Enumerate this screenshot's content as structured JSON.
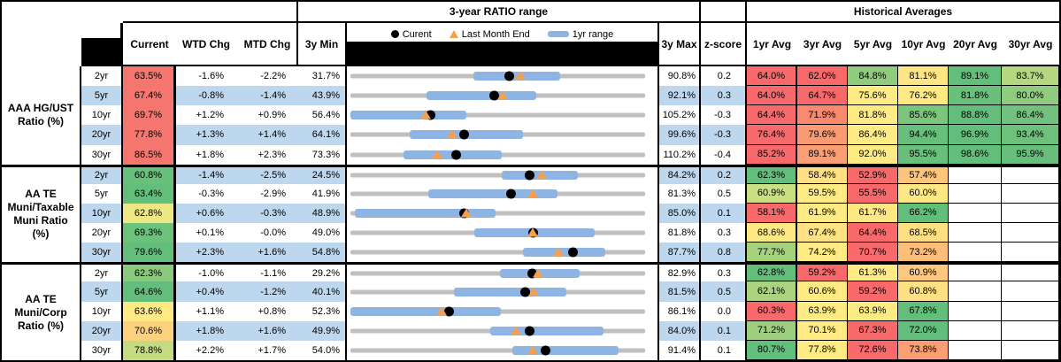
{
  "header": {
    "range_title": "3-year RATIO range",
    "hist_title": "Historical Averages",
    "legend": {
      "current": "Curent",
      "last_month_end": "Last Month End",
      "range": "1yr range"
    },
    "columns": {
      "current": "Current",
      "wtd": "WTD Chg",
      "mtd": "MTD Chg",
      "min": "3y Min",
      "max": "3y Max",
      "z": "z-score"
    },
    "avg_columns": [
      "1yr Avg",
      "3yr Avg",
      "5yr Avg",
      "10yr Avg",
      "20yr Avg",
      "30yr Avg"
    ]
  },
  "palette": {
    "band_blue": "#BDD7EE",
    "bar_blue": "#8DB4E2",
    "track_gray": "#BFBFBF",
    "triangle_orange": "#F6A04E",
    "dot_black": "#000000",
    "heat_red": "#F8696B",
    "heat_yellow": "#FFEB84",
    "heat_green": "#63BE7B"
  },
  "groups": [
    {
      "label_lines": [
        "AAA HG/UST",
        "Ratio (%)"
      ],
      "rows": [
        {
          "tenor": "2yr",
          "current": "63.5%",
          "cur_bg": "#F4766E",
          "wtd": "-1.6%",
          "mtd": "-2.2%",
          "min": "31.7%",
          "max": "90.8%",
          "z": "0.2",
          "avgs": [
            {
              "v": "64.0%",
              "bg": "#F8696B"
            },
            {
              "v": "62.0%",
              "bg": "#F8696B"
            },
            {
              "v": "84.8%",
              "bg": "#90CC7E"
            },
            {
              "v": "81.1%",
              "bg": "#FFE583"
            },
            {
              "v": "89.1%",
              "bg": "#63BE7B"
            },
            {
              "v": "83.7%",
              "bg": "#B5D77F"
            }
          ]
        },
        {
          "tenor": "5yr",
          "current": "67.4%",
          "cur_bg": "#F4766E",
          "wtd": "-0.8%",
          "mtd": "-1.4%",
          "min": "43.9%",
          "max": "92.1%",
          "z": "0.3",
          "avgs": [
            {
              "v": "64.0%",
              "bg": "#F8696B"
            },
            {
              "v": "64.7%",
              "bg": "#F8696B"
            },
            {
              "v": "75.6%",
              "bg": "#FFEB84"
            },
            {
              "v": "76.2%",
              "bg": "#FFE983"
            },
            {
              "v": "81.8%",
              "bg": "#68C07B"
            },
            {
              "v": "80.0%",
              "bg": "#90CC7E"
            }
          ]
        },
        {
          "tenor": "10yr",
          "current": "69.7%",
          "cur_bg": "#F4766E",
          "wtd": "+1.2%",
          "mtd": "+0.9%",
          "min": "56.4%",
          "max": "105.2%",
          "z": "-0.3",
          "avgs": [
            {
              "v": "64.4%",
              "bg": "#F8696B"
            },
            {
              "v": "71.9%",
              "bg": "#F98A70"
            },
            {
              "v": "81.8%",
              "bg": "#FFEB84"
            },
            {
              "v": "85.6%",
              "bg": "#7CC67C"
            },
            {
              "v": "88.8%",
              "bg": "#63BE7B"
            },
            {
              "v": "86.4%",
              "bg": "#70C27C"
            }
          ]
        },
        {
          "tenor": "20yr",
          "current": "77.8%",
          "cur_bg": "#F4766E",
          "wtd": "+1.3%",
          "mtd": "+1.4%",
          "min": "64.1%",
          "max": "99.6%",
          "z": "-0.3",
          "avgs": [
            {
              "v": "76.4%",
              "bg": "#F8696B"
            },
            {
              "v": "79.6%",
              "bg": "#FA9B73"
            },
            {
              "v": "86.4%",
              "bg": "#FFEB84"
            },
            {
              "v": "94.4%",
              "bg": "#66BF7B"
            },
            {
              "v": "96.9%",
              "bg": "#63BE7B"
            },
            {
              "v": "93.4%",
              "bg": "#6DC17B"
            }
          ]
        },
        {
          "tenor": "30yr",
          "current": "86.5%",
          "cur_bg": "#F4766E",
          "wtd": "+1.8%",
          "mtd": "+2.3%",
          "min": "73.3%",
          "max": "110.2%",
          "z": "-0.4",
          "avgs": [
            {
              "v": "85.2%",
              "bg": "#F8696B"
            },
            {
              "v": "89.1%",
              "bg": "#FA9E74"
            },
            {
              "v": "92.0%",
              "bg": "#FFEB84"
            },
            {
              "v": "95.5%",
              "bg": "#68C07B"
            },
            {
              "v": "98.6%",
              "bg": "#63BE7B"
            },
            {
              "v": "95.9%",
              "bg": "#66BF7B"
            }
          ]
        }
      ]
    },
    {
      "label_lines": [
        "AA TE",
        "Muni/Taxable",
        "Muni Ratio",
        "(%)"
      ],
      "rows": [
        {
          "tenor": "2yr",
          "current": "60.8%",
          "cur_bg": "#68C07B",
          "wtd": "-1.4%",
          "mtd": "-2.5%",
          "min": "24.5%",
          "max": "84.2%",
          "z": "0.2",
          "avgs": [
            {
              "v": "62.3%",
              "bg": "#63BE7B"
            },
            {
              "v": "58.4%",
              "bg": "#FFE183"
            },
            {
              "v": "52.9%",
              "bg": "#F8696B"
            },
            {
              "v": "57.4%",
              "bg": "#FDC57C"
            }
          ]
        },
        {
          "tenor": "5yr",
          "current": "63.4%",
          "cur_bg": "#63BE7B",
          "wtd": "-0.3%",
          "mtd": "-2.9%",
          "min": "41.9%",
          "max": "81.3%",
          "z": "0.5",
          "avgs": [
            {
              "v": "60.9%",
              "bg": "#C9DF81"
            },
            {
              "v": "59.5%",
              "bg": "#FFEB84"
            },
            {
              "v": "55.5%",
              "bg": "#F8696B"
            },
            {
              "v": "60.0%",
              "bg": "#FFE884"
            }
          ]
        },
        {
          "tenor": "10yr",
          "current": "62.8%",
          "cur_bg": "#EDE884",
          "wtd": "+0.6%",
          "mtd": "-0.3%",
          "min": "48.9%",
          "max": "85.0%",
          "z": "0.1",
          "avgs": [
            {
              "v": "58.1%",
              "bg": "#F8696B"
            },
            {
              "v": "61.9%",
              "bg": "#FFEB84"
            },
            {
              "v": "61.7%",
              "bg": "#FFE783"
            },
            {
              "v": "66.2%",
              "bg": "#63BE7B"
            }
          ]
        },
        {
          "tenor": "20yr",
          "current": "69.3%",
          "cur_bg": "#6CC17B",
          "wtd": "+0.1%",
          "mtd": "-0.0%",
          "min": "49.0%",
          "max": "81.8%",
          "z": "0.3",
          "avgs": [
            {
              "v": "68.6%",
              "bg": "#FEE883"
            },
            {
              "v": "67.4%",
              "bg": "#FFE283"
            },
            {
              "v": "64.4%",
              "bg": "#F8696B"
            },
            {
              "v": "68.5%",
              "bg": "#FEE083"
            }
          ]
        },
        {
          "tenor": "30yr",
          "current": "79.6%",
          "cur_bg": "#63BE7B",
          "wtd": "+2.3%",
          "mtd": "+1.6%",
          "min": "54.8%",
          "max": "87.7%",
          "z": "0.8",
          "avgs": [
            {
              "v": "77.7%",
              "bg": "#A6D27E"
            },
            {
              "v": "74.2%",
              "bg": "#FFEB84"
            },
            {
              "v": "70.7%",
              "bg": "#F8696B"
            },
            {
              "v": "73.2%",
              "bg": "#FDBE7B"
            }
          ]
        }
      ]
    },
    {
      "label_lines": [
        "AA TE",
        "Muni/Corp",
        "Ratio (%)"
      ],
      "rows": [
        {
          "tenor": "2yr",
          "current": "62.3%",
          "cur_bg": "#8BCA7D",
          "wtd": "-1.0%",
          "mtd": "-1.1%",
          "min": "29.2%",
          "max": "82.9%",
          "z": "0.3",
          "avgs": [
            {
              "v": "62.8%",
              "bg": "#63BE7B"
            },
            {
              "v": "59.2%",
              "bg": "#F8696B"
            },
            {
              "v": "61.3%",
              "bg": "#FFEB84"
            },
            {
              "v": "60.9%",
              "bg": "#FDC87D"
            }
          ]
        },
        {
          "tenor": "5yr",
          "current": "64.6%",
          "cur_bg": "#63BE7B",
          "wtd": "+0.4%",
          "mtd": "-1.2%",
          "min": "40.1%",
          "max": "81.5%",
          "z": "0.5",
          "avgs": [
            {
              "v": "62.1%",
              "bg": "#ABD37F"
            },
            {
              "v": "60.6%",
              "bg": "#FFEB84"
            },
            {
              "v": "59.2%",
              "bg": "#F8696B"
            },
            {
              "v": "60.8%",
              "bg": "#FFE083"
            }
          ]
        },
        {
          "tenor": "10yr",
          "current": "63.6%",
          "cur_bg": "#FFE983",
          "wtd": "+1.1%",
          "mtd": "+0.8%",
          "min": "52.3%",
          "max": "86.1%",
          "z": "0.0",
          "avgs": [
            {
              "v": "60.3%",
              "bg": "#F8696B"
            },
            {
              "v": "63.9%",
              "bg": "#FFEB84"
            },
            {
              "v": "63.9%",
              "bg": "#FFEB84"
            },
            {
              "v": "67.8%",
              "bg": "#63BE7B"
            }
          ]
        },
        {
          "tenor": "20yr",
          "current": "70.6%",
          "cur_bg": "#FBD17E",
          "wtd": "+1.8%",
          "mtd": "+1.6%",
          "min": "49.9%",
          "max": "84.0%",
          "z": "0.1",
          "avgs": [
            {
              "v": "71.2%",
              "bg": "#9DCF7E"
            },
            {
              "v": "70.1%",
              "bg": "#FFEB84"
            },
            {
              "v": "67.3%",
              "bg": "#F8696B"
            },
            {
              "v": "72.0%",
              "bg": "#63BE7B"
            }
          ]
        },
        {
          "tenor": "30yr",
          "current": "78.8%",
          "cur_bg": "#C4DC80",
          "wtd": "+2.2%",
          "mtd": "+1.7%",
          "min": "54.0%",
          "max": "91.4%",
          "z": "0.1",
          "avgs": [
            {
              "v": "80.7%",
              "bg": "#63BE7B"
            },
            {
              "v": "77.8%",
              "bg": "#FFEB84"
            },
            {
              "v": "72.6%",
              "bg": "#F8696B"
            },
            {
              "v": "73.8%",
              "bg": "#FB9E73"
            }
          ]
        }
      ]
    }
  ],
  "chart_data": {
    "type": "bullet-range",
    "title": "3-year RATIO range",
    "unit": "%",
    "legend_entries": [
      "Curent",
      "Last Month End",
      "1yr range"
    ],
    "rows": [
      {
        "group": "AAA HG/UST Ratio (%)",
        "tenor": "2yr",
        "min": 31.7,
        "yr1_low": 56.4,
        "yr1_high": 73.8,
        "current": 63.5,
        "last_month_end": 65.7,
        "max": 90.8
      },
      {
        "group": "AAA HG/UST Ratio (%)",
        "tenor": "5yr",
        "min": 43.9,
        "yr1_low": 56.3,
        "yr1_high": 74.3,
        "current": 67.4,
        "last_month_end": 68.8,
        "max": 92.1
      },
      {
        "group": "AAA HG/UST Ratio (%)",
        "tenor": "10yr",
        "min": 56.4,
        "yr1_low": 56.4,
        "yr1_high": 75.6,
        "current": 69.7,
        "last_month_end": 68.8,
        "max": 105.2
      },
      {
        "group": "AAA HG/UST Ratio (%)",
        "tenor": "20yr",
        "min": 64.1,
        "yr1_low": 71.2,
        "yr1_high": 84.9,
        "current": 77.8,
        "last_month_end": 76.4,
        "max": 99.6
      },
      {
        "group": "AAA HG/UST Ratio (%)",
        "tenor": "30yr",
        "min": 73.3,
        "yr1_low": 79.9,
        "yr1_high": 92.3,
        "current": 86.5,
        "last_month_end": 84.2,
        "max": 110.2
      },
      {
        "group": "AA TE Muni/Taxable Muni Ratio (%)",
        "tenor": "2yr",
        "min": 24.5,
        "yr1_low": 55.2,
        "yr1_high": 70.6,
        "current": 60.8,
        "last_month_end": 63.3,
        "max": 84.2
      },
      {
        "group": "AA TE Muni/Taxable Muni Ratio (%)",
        "tenor": "5yr",
        "min": 41.9,
        "yr1_low": 52.3,
        "yr1_high": 69.6,
        "current": 63.4,
        "last_month_end": 66.3,
        "max": 81.3
      },
      {
        "group": "AA TE Muni/Taxable Muni Ratio (%)",
        "tenor": "10yr",
        "min": 48.9,
        "yr1_low": 49.4,
        "yr1_high": 66.7,
        "current": 62.8,
        "last_month_end": 63.1,
        "max": 85.0
      },
      {
        "group": "AA TE Muni/Taxable Muni Ratio (%)",
        "tenor": "20yr",
        "min": 49.0,
        "yr1_low": 62.8,
        "yr1_high": 76.2,
        "current": 69.3,
        "last_month_end": 69.3,
        "max": 81.8
      },
      {
        "group": "AA TE Muni/Taxable Muni Ratio (%)",
        "tenor": "30yr",
        "min": 54.8,
        "yr1_low": 74.1,
        "yr1_high": 83.3,
        "current": 79.6,
        "last_month_end": 78.0,
        "max": 87.7
      },
      {
        "group": "AA TE Muni/Corp Ratio (%)",
        "tenor": "2yr",
        "min": 29.2,
        "yr1_low": 56.5,
        "yr1_high": 70.9,
        "current": 62.3,
        "last_month_end": 63.4,
        "max": 82.9
      },
      {
        "group": "AA TE Muni/Corp Ratio (%)",
        "tenor": "5yr",
        "min": 40.1,
        "yr1_low": 54.7,
        "yr1_high": 70.4,
        "current": 64.6,
        "last_month_end": 65.8,
        "max": 81.5
      },
      {
        "group": "AA TE Muni/Corp Ratio (%)",
        "tenor": "10yr",
        "min": 52.3,
        "yr1_low": 52.3,
        "yr1_high": 69.6,
        "current": 63.6,
        "last_month_end": 62.8,
        "max": 86.1
      },
      {
        "group": "AA TE Muni/Corp Ratio (%)",
        "tenor": "20yr",
        "min": 49.9,
        "yr1_low": 66.1,
        "yr1_high": 79.2,
        "current": 70.6,
        "last_month_end": 69.0,
        "max": 84.0
      },
      {
        "group": "AA TE Muni/Corp Ratio (%)",
        "tenor": "30yr",
        "min": 54.0,
        "yr1_low": 74.5,
        "yr1_high": 88.0,
        "current": 78.8,
        "last_month_end": 77.1,
        "max": 91.4
      }
    ]
  }
}
